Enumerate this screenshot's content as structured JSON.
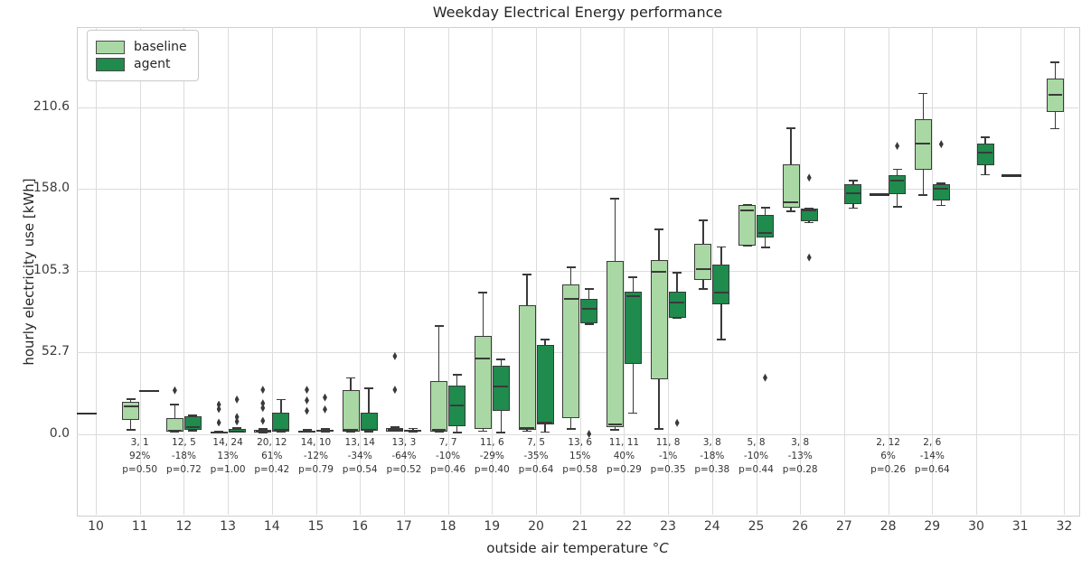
{
  "title": "Weekday Electrical Energy performance",
  "axes": {
    "ylabel": "hourly electricity use [kWh]",
    "xlabel_prefix": "outside air temperature °",
    "xlabel_italic": "C",
    "ytick_labels": [
      "0.0",
      "52.7",
      "105.3",
      "158.0",
      "210.6"
    ],
    "ytick_values": [
      0.0,
      52.7,
      105.3,
      158.0,
      210.6
    ],
    "xtick_labels": [
      "10",
      "11",
      "12",
      "13",
      "14",
      "15",
      "16",
      "17",
      "18",
      "19",
      "20",
      "21",
      "22",
      "23",
      "24",
      "25",
      "26",
      "27",
      "28",
      "29",
      "30",
      "31",
      "32"
    ],
    "xtick_values": [
      10,
      11,
      12,
      13,
      14,
      15,
      16,
      17,
      18,
      19,
      20,
      21,
      22,
      23,
      24,
      25,
      26,
      27,
      28,
      29,
      30,
      31,
      32
    ],
    "ylim": [
      -30.8,
      265.0
    ],
    "grid": true
  },
  "legend": {
    "position": "upper-left",
    "items": [
      {
        "label": "baseline",
        "color": "#a9d8a4"
      },
      {
        "label": "agent",
        "color": "#1f8b4d"
      }
    ]
  },
  "colors": {
    "baseline_fill": "#a9d8a4",
    "agent_fill": "#1f8b4d",
    "box_edge": "#3a3a3a",
    "grid": "#dcdcdc",
    "text": "#262626"
  },
  "chart_data": {
    "type": "grouped_boxplot",
    "series_names": [
      "baseline",
      "agent"
    ],
    "x_unit": "°C",
    "y_unit": "kWh",
    "groups": [
      {
        "t": 10,
        "baseline": {
          "line": 13.4
        },
        "agent": null,
        "annotation": null
      },
      {
        "t": 11,
        "baseline": {
          "whislo": 2.3,
          "q1": 9.3,
          "med": 18.0,
          "q3": 21.0,
          "whishi": 23.3,
          "outliers": []
        },
        "agent": {
          "line": 27.9
        },
        "annotation": [
          "3, 1",
          "92%",
          "p=0.50"
        ]
      },
      {
        "t": 12,
        "baseline": {
          "whislo": 1.2,
          "q1": 1.7,
          "med": 2.3,
          "q3": 10.5,
          "whishi": 19.8,
          "outliers": [
            28.4
          ]
        },
        "agent": {
          "whislo": 1.7,
          "q1": 2.9,
          "med": 4.7,
          "q3": 11.6,
          "whishi": 12.8,
          "outliers": []
        },
        "annotation": [
          "12, 5",
          "-18%",
          "p=0.72"
        ]
      },
      {
        "t": 13,
        "baseline": {
          "whislo": 0.5,
          "q1": 0.8,
          "med": 1.2,
          "q3": 1.7,
          "whishi": 2.5,
          "outliers": [
            7.6,
            16.3,
            19.2
          ]
        },
        "agent": {
          "whislo": 0.9,
          "q1": 1.4,
          "med": 2.0,
          "q3": 3.5,
          "whishi": 4.5,
          "outliers": [
            8.3,
            11.2,
            22.5
          ]
        },
        "annotation": [
          "14, 24",
          "13%",
          "p=1.00"
        ]
      },
      {
        "t": 14,
        "baseline": {
          "whislo": 0.8,
          "q1": 1.2,
          "med": 1.8,
          "q3": 2.9,
          "whishi": 4.0,
          "outliers": [
            8.7,
            17.0,
            20.0,
            28.7
          ]
        },
        "agent": {
          "whislo": 1.0,
          "q1": 1.9,
          "med": 2.9,
          "q3": 14.1,
          "whishi": 22.9,
          "outliers": []
        },
        "annotation": [
          "20, 12",
          "61%",
          "p=0.42"
        ]
      },
      {
        "t": 15,
        "baseline": {
          "whislo": 0.9,
          "q1": 1.3,
          "med": 1.9,
          "q3": 2.6,
          "whishi": 3.5,
          "outliers": [
            15.1,
            21.9,
            28.7
          ]
        },
        "agent": {
          "whislo": 1.0,
          "q1": 1.5,
          "med": 2.1,
          "q3": 2.9,
          "whishi": 3.8,
          "outliers": [
            16.1,
            23.8
          ]
        },
        "annotation": [
          "14, 10",
          "-12%",
          "p=0.79"
        ]
      },
      {
        "t": 16,
        "baseline": {
          "whislo": 1.0,
          "q1": 1.9,
          "med": 3.2,
          "q3": 28.7,
          "whishi": 36.8,
          "outliers": []
        },
        "agent": {
          "whislo": 1.2,
          "q1": 2.1,
          "med": 3.0,
          "q3": 14.1,
          "whishi": 30.1,
          "outliers": []
        },
        "annotation": [
          "13, 14",
          "-34%",
          "p=0.54"
        ]
      },
      {
        "t": 17,
        "baseline": {
          "whislo": 1.5,
          "q1": 2.0,
          "med": 2.8,
          "q3": 3.9,
          "whishi": 5.0,
          "outliers": [
            28.7,
            50.4
          ]
        },
        "agent": {
          "whislo": 1.4,
          "q1": 1.9,
          "med": 2.4,
          "q3": 3.2,
          "whishi": 4.2,
          "outliers": []
        },
        "annotation": [
          "13, 3",
          "-64%",
          "p=0.52"
        ]
      },
      {
        "t": 18,
        "baseline": {
          "whislo": 1.3,
          "q1": 2.0,
          "med": 3.0,
          "q3": 34.5,
          "whishi": 70.4,
          "outliers": []
        },
        "agent": {
          "whislo": 0.6,
          "q1": 5.4,
          "med": 18.4,
          "q3": 31.6,
          "whishi": 38.8,
          "outliers": []
        },
        "annotation": [
          "7, 7",
          "-10%",
          "p=0.46"
        ]
      },
      {
        "t": 19,
        "baseline": {
          "whislo": 1.6,
          "q1": 3.5,
          "med": 49.0,
          "q3": 63.6,
          "whishi": 91.7,
          "outliers": []
        },
        "agent": {
          "whislo": 0.6,
          "q1": 15.1,
          "med": 31.0,
          "q3": 44.2,
          "whishi": 48.7,
          "outliers": []
        },
        "annotation": [
          "11, 6",
          "-29%",
          "p=0.40"
        ]
      },
      {
        "t": 20,
        "baseline": {
          "whislo": 1.6,
          "q1": 2.9,
          "med": 4.0,
          "q3": 83.0,
          "whishi": 103.3,
          "outliers": []
        },
        "agent": {
          "whislo": 1.0,
          "q1": 6.4,
          "med": 7.4,
          "q3": 57.8,
          "whishi": 61.7,
          "outliers": []
        },
        "annotation": [
          "7, 5",
          "-35%",
          "p=0.64"
        ]
      },
      {
        "t": 21,
        "baseline": {
          "whislo": 2.9,
          "q1": 10.3,
          "med": 87.3,
          "q3": 96.6,
          "whishi": 108.2,
          "outliers": []
        },
        "agent": {
          "whislo": 70.4,
          "q1": 71.4,
          "med": 81.0,
          "q3": 87.4,
          "whishi": 94.0,
          "outliers": [
            0.3
          ]
        },
        "annotation": [
          "13, 6",
          "15%",
          "p=0.58"
        ]
      },
      {
        "t": 22,
        "baseline": {
          "whislo": 2.5,
          "q1": 4.8,
          "med": 6.4,
          "q3": 111.5,
          "whishi": 152.2,
          "outliers": []
        },
        "agent": {
          "whislo": 13.2,
          "q1": 45.6,
          "med": 88.8,
          "q3": 92.1,
          "whishi": 101.8,
          "outliers": []
        },
        "annotation": [
          "11, 11",
          "40%",
          "p=0.29"
        ]
      },
      {
        "t": 23,
        "baseline": {
          "whislo": 2.9,
          "q1": 35.5,
          "med": 104.7,
          "q3": 112.1,
          "whishi": 132.4,
          "outliers": []
        },
        "agent": {
          "whislo": 74.6,
          "q1": 75.2,
          "med": 84.9,
          "q3": 92.1,
          "whishi": 104.7,
          "outliers": [
            7.4
          ]
        },
        "annotation": [
          "11, 8",
          "-1%",
          "p=0.35"
        ]
      },
      {
        "t": 24,
        "baseline": {
          "whislo": 93.1,
          "q1": 99.5,
          "med": 106.6,
          "q3": 122.7,
          "whishi": 138.2,
          "outliers": []
        },
        "agent": {
          "whislo": 60.7,
          "q1": 83.9,
          "med": 91.1,
          "q3": 109.5,
          "whishi": 121.2,
          "outliers": []
        },
        "annotation": [
          "3, 8",
          "-18%",
          "p=0.38"
        ]
      },
      {
        "t": 25,
        "baseline": {
          "whislo": 121.2,
          "q1": 121.7,
          "med": 144.1,
          "q3": 147.9,
          "whishi": 148.4,
          "outliers": []
        },
        "agent": {
          "whislo": 119.8,
          "q1": 127.0,
          "med": 129.5,
          "q3": 141.5,
          "whishi": 146.4,
          "outliers": [
            36.5
          ]
        },
        "annotation": [
          "5, 8",
          "-10%",
          "p=0.44"
        ]
      },
      {
        "t": 26,
        "baseline": {
          "whislo": 143.1,
          "q1": 146.0,
          "med": 149.5,
          "q3": 174.1,
          "whishi": 197.8,
          "outliers": []
        },
        "agent": {
          "whislo": 135.9,
          "q1": 137.5,
          "med": 144.1,
          "q3": 145.4,
          "whishi": 146.0,
          "outliers": [
            114.0,
            165.4
          ]
        },
        "annotation": [
          "3, 8",
          "-13%",
          "p=0.28"
        ]
      },
      {
        "t": 27,
        "baseline": null,
        "agent": {
          "whislo": 145.4,
          "q1": 148.3,
          "med": 155.1,
          "q3": 161.0,
          "whishi": 163.8,
          "outliers": []
        },
        "annotation": null
      },
      {
        "t": 28,
        "baseline": {
          "line": 154.5
        },
        "agent": {
          "whislo": 146.0,
          "q1": 154.7,
          "med": 163.5,
          "q3": 167.0,
          "whishi": 171.2,
          "outliers": [
            185.8
          ]
        },
        "annotation": [
          "2, 12",
          "6%",
          "p=0.26"
        ]
      },
      {
        "t": 29,
        "baseline": {
          "whislo": 153.8,
          "q1": 170.3,
          "med": 187.1,
          "q3": 203.0,
          "whishi": 220.1,
          "outliers": []
        },
        "agent": {
          "whislo": 147.0,
          "q1": 150.8,
          "med": 158.0,
          "q3": 161.0,
          "whishi": 162.3,
          "outliers": [
            187.0
          ]
        },
        "annotation": [
          "2, 6",
          "-14%",
          "p=0.64"
        ]
      },
      {
        "t": 30,
        "baseline": null,
        "agent": {
          "whislo": 166.8,
          "q1": 173.5,
          "med": 181.3,
          "q3": 187.1,
          "whishi": 192.0,
          "outliers": []
        },
        "annotation": null
      },
      {
        "t": 31,
        "baseline": {
          "line": 166.8
        },
        "agent": null,
        "annotation": null
      },
      {
        "t": 32,
        "baseline": {
          "whislo": 196.4,
          "q1": 207.5,
          "med": 218.5,
          "q3": 229.0,
          "whishi": 240.1,
          "outliers": []
        },
        "agent": null,
        "annotation": null
      }
    ]
  }
}
